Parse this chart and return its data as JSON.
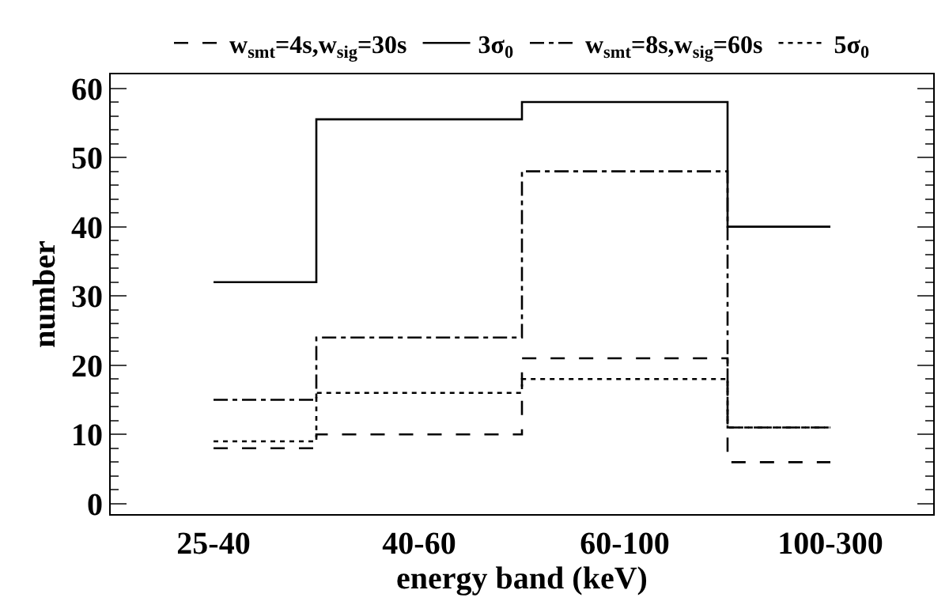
{
  "chart_data": {
    "type": "step",
    "xlabel": "energy band (keV)",
    "ylabel": "number",
    "categories": [
      "25-40",
      "40-60",
      "60-100",
      "100-300"
    ],
    "series": [
      {
        "name": "w$_{smt}$=4s,w$_{sig}$=30s",
        "color": "#000000",
        "line_style": "dashed",
        "values": [
          8,
          10,
          21,
          6
        ]
      },
      {
        "name": "3σ$_{0}$",
        "color": "#000000",
        "line_style": "solid",
        "values": [
          32,
          55.5,
          58,
          40
        ]
      },
      {
        "name": "w$_{smt}$=8s,w$_{sig}$=60s",
        "color": "#000000",
        "line_style": "dashdot",
        "values": [
          15,
          24,
          48,
          11
        ]
      },
      {
        "name": "5σ$_{0}$",
        "color": "#000000",
        "line_style": "dotted",
        "values": [
          9,
          16,
          18,
          11
        ]
      }
    ],
    "ylim": [
      -1.5,
      62
    ],
    "yticks": [
      0,
      10,
      20,
      30,
      40,
      50,
      60
    ],
    "legend": "top",
    "marker": "none"
  }
}
